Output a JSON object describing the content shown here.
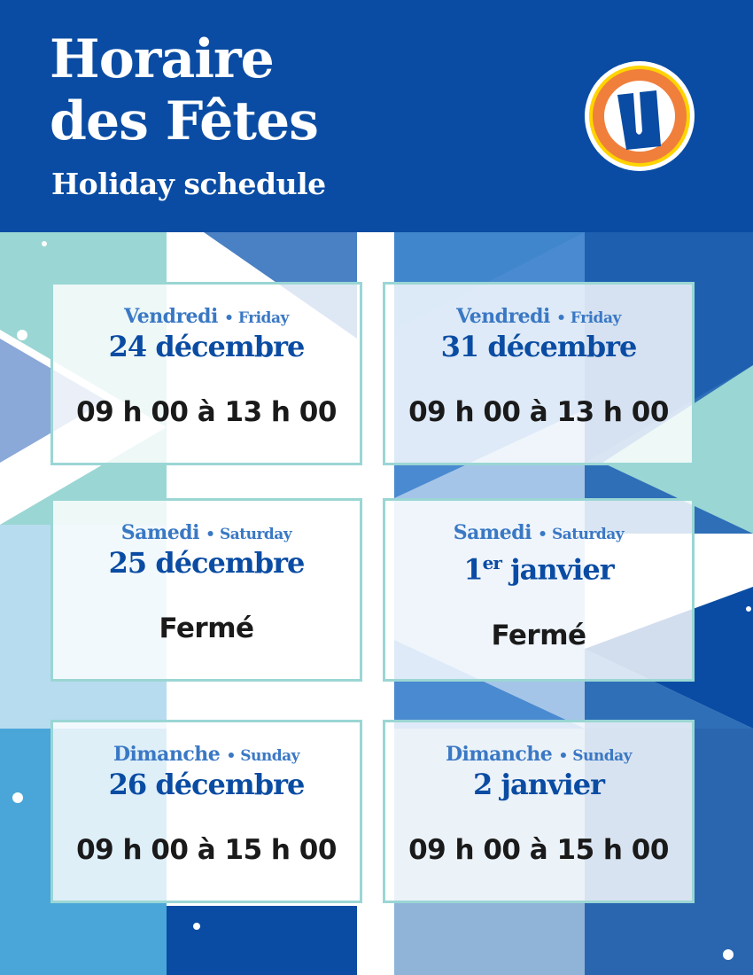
{
  "header": {
    "title_line1": "Horaire",
    "title_line2": "des Fêtes",
    "subtitle": "Holiday schedule",
    "logo_letter": "U"
  },
  "colors": {
    "brand_blue": "#0a4ca3",
    "day_blue": "#3a78c4",
    "teal": "#9ad6d4",
    "logo_orange": "#f07f3c",
    "logo_yellow": "#ffd400"
  },
  "schedule": [
    {
      "day_fr": "Vendredi",
      "sep": "•",
      "day_en": "Friday",
      "date": "24 décembre",
      "date_sup": "",
      "hours": "09 h 00 à 13 h 00"
    },
    {
      "day_fr": "Vendredi",
      "sep": "•",
      "day_en": "Friday",
      "date": "31 décembre",
      "date_sup": "",
      "hours": "09 h 00 à 13 h 00"
    },
    {
      "day_fr": "Samedi",
      "sep": "•",
      "day_en": "Saturday",
      "date": "25 décembre",
      "date_sup": "",
      "hours": "Fermé"
    },
    {
      "day_fr": "Samedi",
      "sep": "•",
      "day_en": "Saturday",
      "date_pre": "1",
      "date_sup": "er",
      "date": " janvier",
      "hours": "Fermé"
    },
    {
      "day_fr": "Dimanche",
      "sep": "•",
      "day_en": "Sunday",
      "date": "26 décembre",
      "date_sup": "",
      "hours": "09 h 00 à 15 h 00"
    },
    {
      "day_fr": "Dimanche",
      "sep": "•",
      "day_en": "Sunday",
      "date": "2 janvier",
      "date_sup": "",
      "hours": "09 h 00 à 15 h 00"
    }
  ]
}
